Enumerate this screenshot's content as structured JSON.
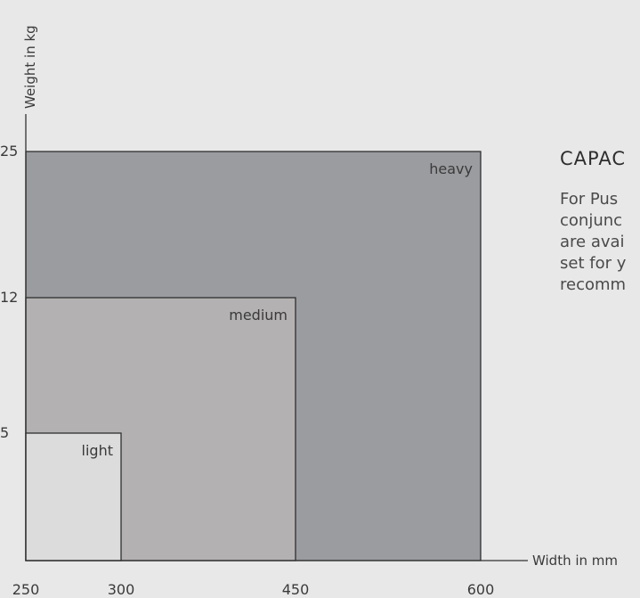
{
  "chart_data": {
    "type": "area",
    "xlabel": "Width in mm",
    "ylabel": "Weight in kg",
    "x_ticks": [
      250,
      300,
      450,
      600
    ],
    "y_ticks": [
      5,
      12,
      25
    ],
    "xlim": [
      250,
      600
    ],
    "regions": [
      {
        "name": "heavy",
        "x_max": 600,
        "y_max": 25,
        "color": "#9b9ca0"
      },
      {
        "name": "medium",
        "x_max": 450,
        "y_max": 12,
        "color": "#b3b1b1"
      },
      {
        "name": "light",
        "x_max": 300,
        "y_max": 5,
        "color": "#dcdcdc"
      }
    ]
  },
  "side_panel": {
    "heading": "CAPAC",
    "lines": [
      "For Pus",
      "conjunc",
      "are avai",
      "set for y",
      "recomm"
    ]
  }
}
